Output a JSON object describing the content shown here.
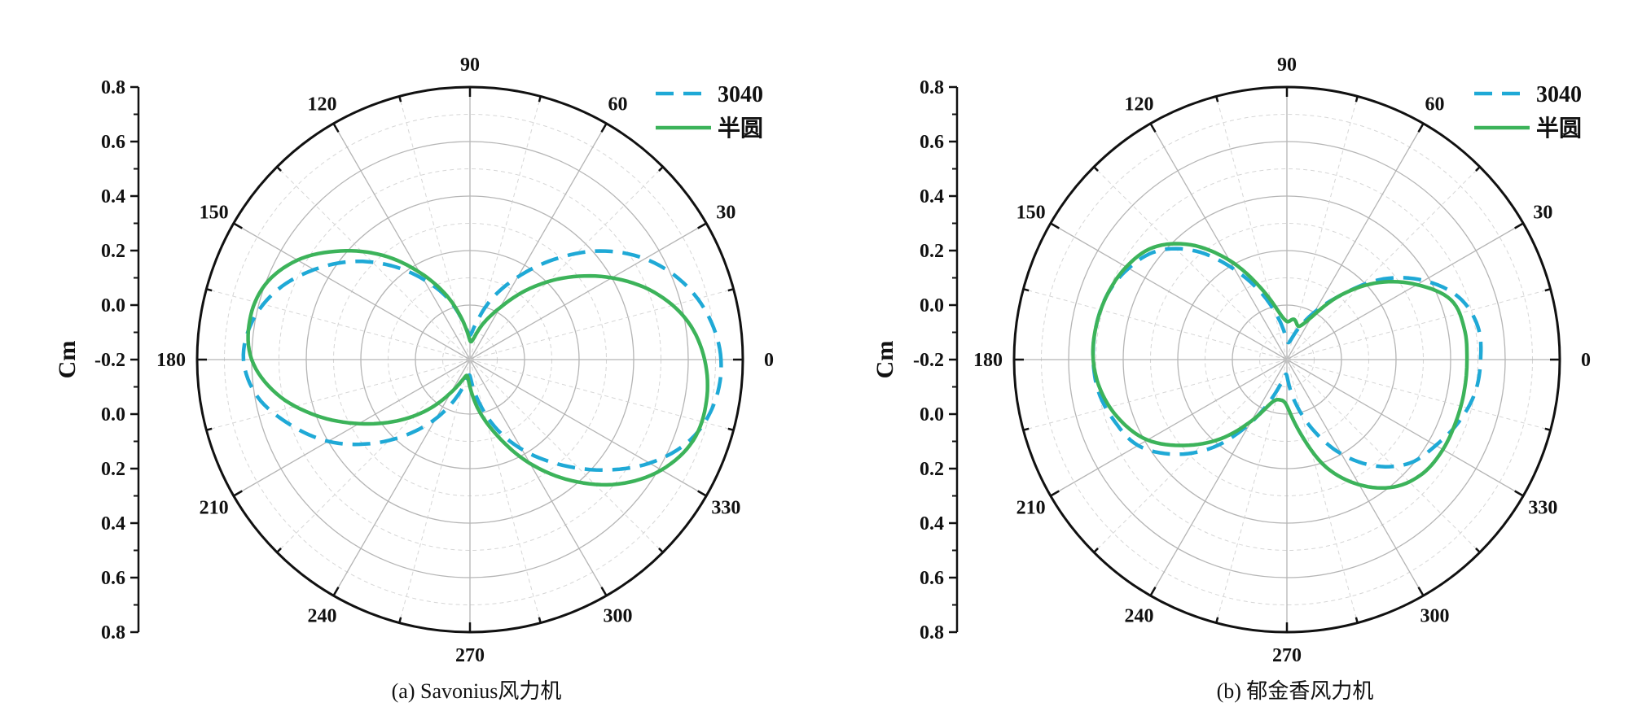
{
  "chart_data": [
    {
      "type": "polar-line",
      "caption": "(a) Savonius风力机",
      "radial_axis": {
        "title": "Cm",
        "range": [
          -0.2,
          0.8
        ],
        "tick_labels_top": [
          "0.8",
          "0.6",
          "0.4",
          "0.2",
          "0.0",
          "-0.2"
        ],
        "tick_labels_bottom": [
          "0.0",
          "0.2",
          "0.4",
          "0.6",
          "0.8"
        ]
      },
      "angular_axis": {
        "unit": "degrees",
        "ticks": [
          0,
          30,
          60,
          90,
          120,
          150,
          180,
          210,
          240,
          270,
          300,
          330
        ],
        "tick_labels": [
          "0",
          "30",
          "60",
          "90",
          "120",
          "150",
          "180",
          "210",
          "240",
          "270",
          "300",
          "330"
        ]
      },
      "grid": true,
      "legend_position": "top-right",
      "series": [
        {
          "name": "3040",
          "style": "dashed",
          "color": "#1fa9d6",
          "theta": [
            0,
            10,
            20,
            30,
            40,
            50,
            60,
            70,
            80,
            90,
            100,
            110,
            120,
            130,
            140,
            150,
            160,
            170,
            180,
            190,
            200,
            210,
            220,
            230,
            240,
            250,
            260,
            270,
            280,
            290,
            300,
            310,
            320,
            330,
            340,
            350
          ],
          "r": [
            0.72,
            0.69,
            0.63,
            0.54,
            0.42,
            0.28,
            0.15,
            0.04,
            -0.06,
            -0.11,
            -0.06,
            0.04,
            0.14,
            0.25,
            0.36,
            0.46,
            0.55,
            0.61,
            0.63,
            0.59,
            0.5,
            0.4,
            0.28,
            0.16,
            0.05,
            -0.05,
            -0.12,
            -0.14,
            -0.06,
            0.06,
            0.18,
            0.3,
            0.43,
            0.56,
            0.66,
            0.71
          ]
        },
        {
          "name": "半圆",
          "style": "solid",
          "color": "#3cb35a",
          "theta": [
            0,
            10,
            20,
            30,
            40,
            50,
            60,
            70,
            80,
            90,
            100,
            110,
            120,
            130,
            140,
            150,
            160,
            170,
            180,
            190,
            200,
            210,
            220,
            230,
            240,
            250,
            260,
            270,
            280,
            290,
            300,
            310,
            320,
            330,
            340,
            350
          ],
          "r": [
            0.66,
            0.61,
            0.52,
            0.4,
            0.27,
            0.14,
            0.02,
            -0.06,
            -0.12,
            -0.13,
            -0.06,
            0.05,
            0.17,
            0.3,
            0.42,
            0.53,
            0.6,
            0.62,
            0.6,
            0.52,
            0.4,
            0.27,
            0.15,
            0.04,
            -0.06,
            -0.12,
            -0.14,
            -0.1,
            -0.01,
            0.1,
            0.24,
            0.38,
            0.51,
            0.61,
            0.67,
            0.68
          ]
        }
      ]
    },
    {
      "type": "polar-line",
      "caption": "(b) 郁金香风力机",
      "radial_axis": {
        "title": "Cm",
        "range": [
          -0.2,
          0.8
        ],
        "tick_labels_top": [
          "0.8",
          "0.6",
          "0.4",
          "0.2",
          "0.0",
          "-0.2"
        ],
        "tick_labels_bottom": [
          "0.0",
          "0.2",
          "0.4",
          "0.6",
          "0.8"
        ]
      },
      "angular_axis": {
        "unit": "degrees",
        "ticks": [
          0,
          30,
          60,
          90,
          120,
          150,
          180,
          210,
          240,
          270,
          300,
          330
        ],
        "tick_labels": [
          "0",
          "30",
          "60",
          "90",
          "120",
          "150",
          "180",
          "210",
          "240",
          "270",
          "300",
          "330"
        ]
      },
      "grid": true,
      "legend_position": "top-right",
      "series": [
        {
          "name": "3040",
          "style": "dashed",
          "color": "#1fa9d6",
          "theta": [
            0,
            10,
            20,
            30,
            40,
            50,
            60,
            70,
            80,
            90,
            100,
            110,
            120,
            130,
            140,
            150,
            160,
            170,
            180,
            190,
            200,
            210,
            220,
            230,
            240,
            250,
            260,
            270,
            280,
            290,
            300,
            310,
            320,
            330,
            340,
            350
          ],
          "r": [
            0.51,
            0.51,
            0.47,
            0.38,
            0.26,
            0.11,
            0.0,
            -0.08,
            -0.13,
            -0.13,
            -0.06,
            0.05,
            0.18,
            0.32,
            0.42,
            0.47,
            0.5,
            0.51,
            0.51,
            0.5,
            0.47,
            0.43,
            0.34,
            0.22,
            0.07,
            -0.06,
            -0.13,
            -0.14,
            -0.05,
            0.07,
            0.2,
            0.31,
            0.39,
            0.43,
            0.47,
            0.5
          ]
        },
        {
          "name": "半圆",
          "style": "solid",
          "color": "#3cb35a",
          "theta": [
            0,
            10,
            20,
            30,
            40,
            50,
            60,
            70,
            80,
            90,
            100,
            110,
            120,
            130,
            140,
            150,
            160,
            170,
            180,
            190,
            200,
            210,
            220,
            230,
            240,
            250,
            260,
            270,
            280,
            290,
            300,
            310,
            320,
            330,
            340,
            350
          ],
          "r": [
            0.46,
            0.46,
            0.44,
            0.35,
            0.24,
            0.11,
            -0.02,
            -0.07,
            -0.05,
            -0.06,
            -0.02,
            0.08,
            0.22,
            0.35,
            0.44,
            0.48,
            0.5,
            0.51,
            0.51,
            0.49,
            0.45,
            0.39,
            0.29,
            0.18,
            0.06,
            -0.03,
            -0.05,
            -0.03,
            0.07,
            0.22,
            0.33,
            0.41,
            0.45,
            0.46,
            0.46,
            0.46
          ]
        }
      ]
    }
  ]
}
